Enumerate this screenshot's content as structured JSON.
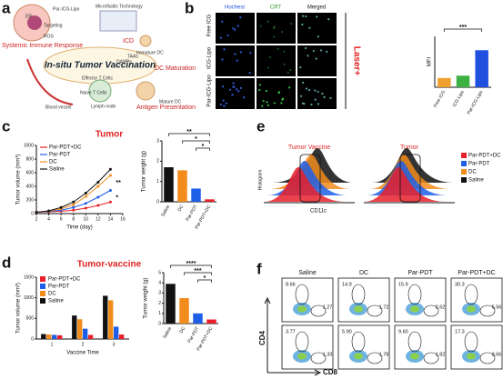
{
  "panel_labels": [
    "a",
    "b",
    "c",
    "d",
    "e",
    "f"
  ],
  "a": {
    "title": "In-situ Tumor Vaccination",
    "labels": [
      "Par-ICG-Lipo",
      "Microfluidic Technology",
      "ICD",
      "Immature DC",
      "TAAs",
      "DAMPs",
      "DC Maturation",
      "Mature DC",
      "Antigen Presentation",
      "Effector T Cells",
      "Naive T Cells",
      "Lymph node",
      "Blood vessel",
      "Systemic Immune Response",
      "Targeting",
      "ROS",
      "ER"
    ]
  },
  "b": {
    "columns": [
      "Hochest",
      "CRT",
      "Merged"
    ],
    "rows": [
      "Free ICG",
      "ICG-Lipo",
      "Par-ICG-Lipo"
    ],
    "side_label": "Laser+"
  },
  "e": {
    "titles": [
      "Tumor Vaccine",
      "Tumor"
    ],
    "ylabel": "Histogram",
    "xlabel": "CD11c",
    "legend": [
      {
        "name": "Par-PDT+DC",
        "color": "#e8202a"
      },
      {
        "name": "Par-PDT",
        "color": "#1f5fe8"
      },
      {
        "name": "DC",
        "color": "#f28c1c"
      },
      {
        "name": "Saline",
        "color": "#111111"
      }
    ]
  },
  "f": {
    "columns": [
      "Saline",
      "DC",
      "Par-PDT",
      "Par-PDT+DC"
    ],
    "ylabel": "CD4",
    "xlabel": "CD8",
    "gates": [
      [
        [
          "8.66",
          "1.27"
        ],
        [
          "14.9",
          "1.72"
        ],
        [
          "15.9",
          "2.62"
        ],
        [
          "30.3",
          "5.56"
        ]
      ],
      [
        [
          "3.77",
          "1.33"
        ],
        [
          "5.90",
          "1.78"
        ],
        [
          "9.60",
          "1.82"
        ],
        [
          "17.3",
          "3.66"
        ]
      ]
    ]
  },
  "chart_data": [
    {
      "type": "bar",
      "ylabel": "MFI",
      "categories": [
        "Free ICG",
        "ICG-Lipo",
        "Par-ICG-Lipo"
      ],
      "values": [
        0.004,
        0.005,
        0.016
      ],
      "colors": [
        "#f0a030",
        "#3cb043",
        "#2050e0"
      ],
      "ylim": [
        0,
        0.022
      ],
      "annotations": [
        "***"
      ]
    },
    {
      "type": "line",
      "title": "Tumor",
      "xlabel": "Time (day)",
      "ylabel": "Tumor volume (mm³)",
      "x": [
        2,
        4,
        6,
        8,
        10,
        12,
        14
      ],
      "xlim": [
        2,
        16
      ],
      "xticks": [
        2,
        4,
        6,
        8,
        10,
        12,
        14,
        16
      ],
      "ylim": [
        0,
        1000
      ],
      "yticks": [
        0,
        200,
        400,
        600,
        800,
        1000
      ],
      "series": [
        {
          "name": "Par-PDT+DC",
          "color": "#e8202a",
          "values": [
            20,
            25,
            35,
            50,
            80,
            120,
            170
          ]
        },
        {
          "name": "Par-PDT",
          "color": "#1f5fe8",
          "values": [
            20,
            30,
            50,
            90,
            150,
            240,
            340
          ]
        },
        {
          "name": "DC",
          "color": "#f28c1c",
          "values": [
            20,
            35,
            70,
            130,
            250,
            400,
            560
          ]
        },
        {
          "name": "Saline",
          "color": "#111111",
          "values": [
            20,
            40,
            90,
            170,
            300,
            460,
            650
          ]
        }
      ],
      "annotations": [
        "**",
        "*"
      ]
    },
    {
      "type": "bar",
      "ylabel": "Tumor weight (g)",
      "categories": [
        "Saline",
        "DC",
        "Par-PDT",
        "Par-PDT+DC"
      ],
      "values": [
        1.7,
        1.55,
        0.65,
        0.12
      ],
      "colors": [
        "#111111",
        "#f28c1c",
        "#1f5fe8",
        "#e8202a"
      ],
      "ylim": [
        0,
        3
      ],
      "yticks": [
        0,
        1,
        2,
        3
      ],
      "annotations": [
        "**",
        "*",
        "*"
      ]
    },
    {
      "type": "grouped",
      "title": "Tumor-vaccine",
      "xlabel": "Vaccine Time",
      "ylabel": "Tumor volume (mm³)",
      "categories": [
        "1",
        "2",
        "3"
      ],
      "ylim": [
        0,
        1500
      ],
      "yticks": [
        0,
        500,
        1000,
        1500
      ],
      "series": [
        {
          "name": "Par-PDT+DC",
          "color": "#e8202a",
          "values": [
            90,
            100,
            110
          ]
        },
        {
          "name": "Par-PDT",
          "color": "#1f5fe8",
          "values": [
            100,
            250,
            300
          ]
        },
        {
          "name": "DC",
          "color": "#f28c1c",
          "values": [
            110,
            480,
            940
          ]
        },
        {
          "name": "Saline",
          "color": "#111111",
          "values": [
            120,
            570,
            1050
          ]
        }
      ]
    },
    {
      "type": "bar",
      "ylabel": "Tumor weight (g)",
      "categories": [
        "Saline",
        "DC",
        "Par-PDT",
        "Par-PDT+DC"
      ],
      "values": [
        3.9,
        2.5,
        1.0,
        0.4
      ],
      "colors": [
        "#111111",
        "#f28c1c",
        "#1f5fe8",
        "#e8202a"
      ],
      "ylim": [
        0,
        5
      ],
      "yticks": [
        0,
        1,
        2,
        3,
        4,
        5
      ],
      "annotations": [
        "****",
        "***",
        "*"
      ]
    }
  ]
}
